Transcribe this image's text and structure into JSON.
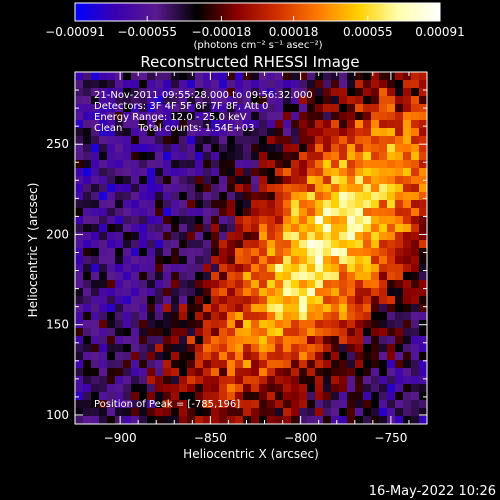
{
  "chart_data": {
    "type": "heatmap",
    "title": "Reconstructed RHESSI Image",
    "xlabel": "Heliocentric X (arcsec)",
    "ylabel": "Heliocentric Y (arcsec)",
    "xlim": [
      -925,
      -730
    ],
    "ylim": [
      95,
      290
    ],
    "x_ticks": [
      -900,
      -850,
      -800,
      -750
    ],
    "y_ticks": [
      100,
      150,
      200,
      250
    ],
    "x_tick_labels": [
      "−900",
      "−850",
      "−800",
      "−750"
    ],
    "y_tick_labels": [
      "100",
      "150",
      "200",
      "250"
    ],
    "colorbar": {
      "range": [
        -0.00091,
        0.00091
      ],
      "ticks": [
        -0.00091,
        -0.00055,
        -0.00018,
        0.00018,
        0.00055,
        0.00091
      ],
      "tick_labels": [
        "−0.00091",
        "−0.00055",
        "−0.00018",
        "0.00018",
        "0.00055",
        "0.00091"
      ],
      "unit_label": "(photons cm⁻² s⁻¹ asec⁻²)",
      "colormap": [
        "#0000ff",
        "#3a00b0",
        "#5a1a8f",
        "#000000",
        "#8b0000",
        "#d23000",
        "#ff7a00",
        "#ffd000",
        "#ffffb0",
        "#ffffff"
      ]
    },
    "peak": {
      "x": -785,
      "y": 196
    },
    "annotations": [
      "21-Nov-2011 09:55:28.000 to 09:56:32.000",
      "Detectors: 3F 4F 5F 6F 7F 8F, Att 0",
      "Energy Range: 12.0 - 25.0 keV",
      "Clean     Total counts: 1.54E+03"
    ],
    "peak_label": "Position of Peak = [-785,196]"
  },
  "footer": {
    "date": "16-May-2022 10:26"
  }
}
